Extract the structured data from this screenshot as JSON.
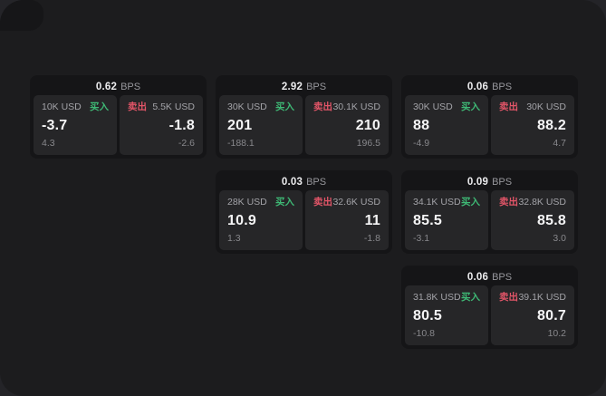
{
  "labels": {
    "buy": "买入",
    "sell": "卖出",
    "bps": "BPS"
  },
  "colors": {
    "buy": "#3eb975",
    "sell": "#e25568",
    "panel_bg": "#1c1c1e",
    "card_bg": "#151517",
    "tile_bg": "#262628",
    "page_bg": "#242428"
  },
  "cards": [
    {
      "bps": "0.62",
      "buy": {
        "amount": "10K USD",
        "price": "-3.7",
        "delta": "4.3"
      },
      "sell": {
        "amount": "5.5K USD",
        "price": "-1.8",
        "delta": "-2.6"
      }
    },
    {
      "bps": "2.92",
      "buy": {
        "amount": "30K USD",
        "price": "201",
        "delta": "-188.1"
      },
      "sell": {
        "amount": "30.1K USD",
        "price": "210",
        "delta": "196.5"
      }
    },
    {
      "bps": "0.03",
      "buy": {
        "amount": "28K USD",
        "price": "10.9",
        "delta": "1.3"
      },
      "sell": {
        "amount": "32.6K USD",
        "price": "11",
        "delta": "-1.8"
      }
    },
    {
      "bps": "0.06",
      "buy": {
        "amount": "30K USD",
        "price": "88",
        "delta": "-4.9"
      },
      "sell": {
        "amount": "30K USD",
        "price": "88.2",
        "delta": "4.7"
      }
    },
    {
      "bps": "0.09",
      "buy": {
        "amount": "34.1K USD",
        "price": "85.5",
        "delta": "-3.1"
      },
      "sell": {
        "amount": "32.8K USD",
        "price": "85.8",
        "delta": "3.0"
      }
    },
    {
      "bps": "0.06",
      "buy": {
        "amount": "31.8K USD",
        "price": "80.5",
        "delta": "-10.8"
      },
      "sell": {
        "amount": "39.1K USD",
        "price": "80.7",
        "delta": "10.2"
      }
    }
  ]
}
